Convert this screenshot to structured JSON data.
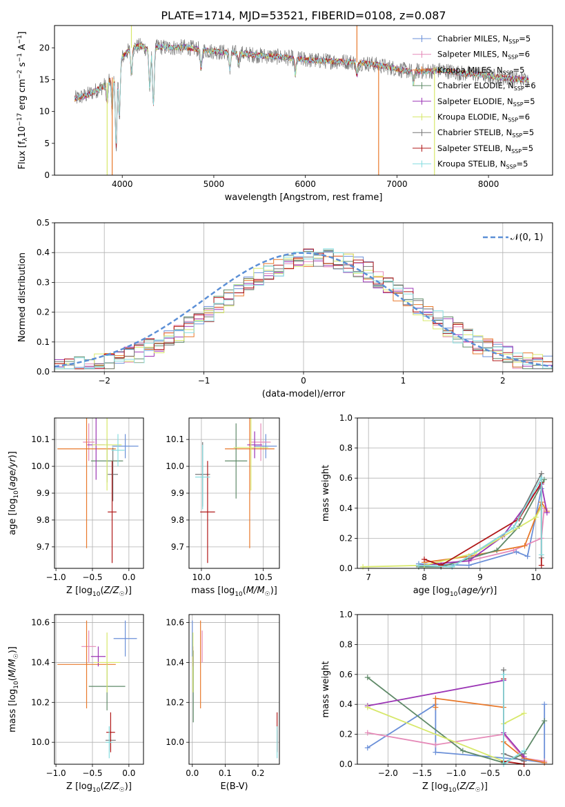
{
  "figure_title": "PLATE=1714, MJD=53521, FIBERID=0108, z=0.087",
  "colors": {
    "Chabrier MILES": "#6a8fd8",
    "Salpeter MILES": "#e58ab8",
    "Kroupa MILES": "#e8782a",
    "Chabrier ELODIE": "#5f8a68",
    "Salpeter ELODIE": "#9b35b5",
    "Kroupa ELODIE": "#d7e86a",
    "Chabrier STELIB": "#777777",
    "Salpeter STELIB": "#b01818",
    "Kroupa STELIB": "#86dde0",
    "normal": "#5b8fd6",
    "grid": "#b0b0b0"
  },
  "chart_data": [
    {
      "id": "spectrum",
      "type": "line",
      "xlabel": "wavelength [Angstrom, rest frame]",
      "ylabel": "Flux [f_λ10^-17 erg cm^-2 s^-1 A^-1]",
      "xlim": [
        3260,
        8700
      ],
      "ylim": [
        0,
        23.5
      ],
      "xticks": [
        4000,
        5000,
        6000,
        7000,
        8000
      ],
      "yticks": [
        0,
        5,
        10,
        15,
        20
      ],
      "grid": false,
      "legend_position": "top-right",
      "legend": [
        {
          "label": "Chabrier MILES, N_SSP=5",
          "main": "Chabrier MILES, N",
          "sub": "SSP",
          "tail": "=5"
        },
        {
          "label": "Salpeter MILES, N_SSP=6",
          "main": "Salpeter MILES, N",
          "sub": "SSP",
          "tail": "=6"
        },
        {
          "label": "Kroupa MILES, N_SSP=5",
          "main": "Kroupa MILES, N",
          "sub": "SSP",
          "tail": "=5"
        },
        {
          "label": "Chabrier ELODIE, N_SSP=6",
          "main": "Chabrier ELODIE, N",
          "sub": "SSP",
          "tail": "=6"
        },
        {
          "label": "Salpeter ELODIE, N_SSP=5",
          "main": "Salpeter ELODIE, N",
          "sub": "SSP",
          "tail": "=5"
        },
        {
          "label": "Kroupa ELODIE, N_SSP=6",
          "main": "Kroupa ELODIE, N",
          "sub": "SSP",
          "tail": "=6"
        },
        {
          "label": "Chabrier STELIB, N_SSP=5",
          "main": "Chabrier STELIB, N",
          "sub": "SSP",
          "tail": "=5"
        },
        {
          "label": "Salpeter STELIB, N_SSP=5",
          "main": "Salpeter STELIB, N",
          "sub": "SSP",
          "tail": "=5"
        },
        {
          "label": "Kroupa STELIB, N_SSP=5",
          "main": "Kroupa STELIB, N",
          "sub": "SSP",
          "tail": "=5"
        }
      ],
      "continuum": [
        [
          3480,
          12.0
        ],
        [
          3600,
          12.5
        ],
        [
          3700,
          13.2
        ],
        [
          3800,
          14.0
        ],
        [
          3900,
          15.5
        ],
        [
          3960,
          17.0
        ],
        [
          4000,
          18.5
        ],
        [
          4100,
          20.0
        ],
        [
          4200,
          20.3
        ],
        [
          4300,
          19.6
        ],
        [
          4400,
          20.2
        ],
        [
          4500,
          20.0
        ],
        [
          4700,
          20.1
        ],
        [
          4900,
          19.6
        ],
        [
          5100,
          19.3
        ],
        [
          5300,
          19.1
        ],
        [
          5500,
          18.8
        ],
        [
          5700,
          18.6
        ],
        [
          5900,
          18.3
        ],
        [
          6100,
          18.0
        ],
        [
          6300,
          17.9
        ],
        [
          6500,
          17.8
        ],
        [
          6700,
          17.5
        ],
        [
          6900,
          17.0
        ],
        [
          7100,
          16.4
        ],
        [
          7300,
          16.3
        ],
        [
          7500,
          16.5
        ],
        [
          7700,
          16.0
        ],
        [
          7900,
          15.8
        ],
        [
          8100,
          15.4
        ],
        [
          8300,
          15.1
        ],
        [
          8440,
          15.0
        ]
      ],
      "dips": [
        [
          3835,
          3.0
        ],
        [
          3890,
          5.0
        ],
        [
          3933,
          12.0
        ],
        [
          3968,
          8.0
        ],
        [
          4101,
          4.0
        ],
        [
          4300,
          6.0
        ],
        [
          4340,
          9.0
        ],
        [
          4861,
          3.0
        ],
        [
          5175,
          2.5
        ],
        [
          5270,
          1.5
        ],
        [
          5890,
          2.5
        ],
        [
          6563,
          2.0
        ],
        [
          7180,
          2.0
        ]
      ],
      "spikes": [
        [
          3835,
          0.0
        ],
        [
          3890,
          0.0
        ],
        [
          4100,
          24.0
        ],
        [
          6800,
          0.0
        ],
        [
          7410,
          0.0
        ],
        [
          6563,
          24.0
        ]
      ]
    },
    {
      "id": "residuals",
      "type": "histogram",
      "xlabel": "(data-model)/error",
      "ylabel": "Normed distribution",
      "xlim": [
        -2.5,
        2.5
      ],
      "ylim": [
        0,
        0.5
      ],
      "xticks": [
        -2,
        -1,
        0,
        1,
        2
      ],
      "yticks": [
        0.0,
        0.1,
        0.2,
        0.3,
        0.4,
        0.5
      ],
      "grid": true,
      "legend_position": "top-right",
      "normal_label": "𝒩(0, 1)",
      "bin_width": 0.1,
      "bin_start": -2.5
    },
    {
      "id": "age-vs-Z",
      "type": "errorbar",
      "xlabel": "Z [log10(Z/Z☉)]",
      "ylabel": "age  [log10(age/yr)]",
      "xlim": [
        -1.02,
        0.2
      ],
      "ylim": [
        9.62,
        10.18
      ],
      "xticks": [
        -1.0,
        -0.5,
        0.0
      ],
      "yticks": [
        9.7,
        9.8,
        9.9,
        10.0,
        10.1
      ],
      "grid": true,
      "points": [
        {
          "model": "Chabrier MILES",
          "x": -0.05,
          "y": 10.075,
          "xerr": 0.18,
          "yerr": 0.045
        },
        {
          "model": "Salpeter MILES",
          "x": -0.55,
          "y": 10.09,
          "xerr": 0.08,
          "yerr": 0.07
        },
        {
          "model": "Kroupa MILES",
          "x": -0.58,
          "y": 10.065,
          "xerr": 0.4,
          "yerr": 0.37
        },
        {
          "model": "Chabrier ELODIE",
          "x": -0.3,
          "y": 10.02,
          "xerr": 0.22,
          "yerr": 0.08
        },
        {
          "model": "Salpeter ELODIE",
          "x": -0.45,
          "y": 10.08,
          "xerr": 0.12,
          "yerr": 0.13
        },
        {
          "model": "Kroupa ELODIE",
          "x": -0.3,
          "y": 10.08,
          "xerr": 0.2,
          "yerr": 0.17
        },
        {
          "model": "Chabrier STELIB",
          "x": -0.22,
          "y": 9.97,
          "xerr": 0.07,
          "yerr": 0.1
        },
        {
          "model": "Salpeter STELIB",
          "x": -0.23,
          "y": 9.83,
          "xerr": 0.06,
          "yerr": 0.19
        },
        {
          "model": "Kroupa STELIB",
          "x": -0.15,
          "y": 10.06,
          "xerr": 0.09,
          "yerr": 0.06
        }
      ]
    },
    {
      "id": "age-vs-mass",
      "type": "errorbar",
      "xlabel": "mass [log10(M/M☉)]",
      "ylabel": "",
      "xlim": [
        9.9,
        10.63
      ],
      "ylim": [
        9.62,
        10.18
      ],
      "xticks": [
        10.0,
        10.5
      ],
      "yticks": [
        9.7,
        9.8,
        9.9,
        10.0,
        10.1
      ],
      "grid": true,
      "points": [
        {
          "model": "Chabrier MILES",
          "x": 10.52,
          "y": 10.075,
          "xerr": 0.09,
          "yerr": 0.045
        },
        {
          "model": "Salpeter MILES",
          "x": 10.48,
          "y": 10.09,
          "xerr": 0.08,
          "yerr": 0.07
        },
        {
          "model": "Kroupa MILES",
          "x": 10.39,
          "y": 10.065,
          "xerr": 0.2,
          "yerr": 0.37
        },
        {
          "model": "Chabrier ELODIE",
          "x": 10.28,
          "y": 10.02,
          "xerr": 0.09,
          "yerr": 0.14
        },
        {
          "model": "Salpeter ELODIE",
          "x": 10.43,
          "y": 10.08,
          "xerr": 0.06,
          "yerr": 0.05
        },
        {
          "model": "Kroupa ELODIE",
          "x": 10.4,
          "y": 10.07,
          "xerr": 0.14,
          "yerr": 0.16
        },
        {
          "model": "Chabrier STELIB",
          "x": 10.01,
          "y": 9.97,
          "xerr": 0.06,
          "yerr": 0.12
        },
        {
          "model": "Salpeter STELIB",
          "x": 10.05,
          "y": 9.83,
          "xerr": 0.06,
          "yerr": 0.19
        },
        {
          "model": "Kroupa STELIB",
          "x": 10.01,
          "y": 9.96,
          "xerr": 0.06,
          "yerr": 0.12
        }
      ]
    },
    {
      "id": "weight-vs-age",
      "type": "line",
      "xlabel": "age  [log10(age/yr)]",
      "ylabel": "mass weight",
      "xlim": [
        6.8,
        10.3
      ],
      "ylim": [
        0,
        1.0
      ],
      "xticks": [
        7,
        8,
        9,
        10
      ],
      "yticks": [
        0.0,
        0.2,
        0.4,
        0.6,
        0.8,
        1.0
      ],
      "grid": true,
      "series": [
        {
          "model": "Chabrier MILES",
          "x": [
            7.9,
            8.8,
            9.65,
            9.85,
            10.1
          ],
          "y": [
            0.03,
            0.02,
            0.11,
            0.08,
            0.53
          ]
        },
        {
          "model": "Salpeter MILES",
          "x": [
            7.9,
            8.8,
            9.6,
            10.1,
            10.15
          ],
          "y": [
            0.02,
            0.05,
            0.12,
            0.2,
            0.4
          ]
        },
        {
          "model": "Kroupa MILES",
          "x": [
            8.0,
            8.8,
            9.8,
            10.1,
            10.2
          ],
          "y": [
            0.04,
            0.08,
            0.15,
            0.44,
            0.38
          ]
        },
        {
          "model": "Chabrier ELODIE",
          "x": [
            7.9,
            8.3,
            9.3,
            9.7,
            10.15
          ],
          "y": [
            0.01,
            0.01,
            0.12,
            0.28,
            0.59
          ]
        },
        {
          "model": "Salpeter ELODIE",
          "x": [
            7.9,
            8.8,
            9.4,
            10.1,
            10.2
          ],
          "y": [
            0.02,
            0.05,
            0.21,
            0.56,
            0.37
          ]
        },
        {
          "model": "Kroupa ELODIE",
          "x": [
            6.9,
            8.0,
            8.9,
            10.0,
            10.1
          ],
          "y": [
            0.01,
            0.02,
            0.1,
            0.34,
            0.41
          ]
        },
        {
          "model": "Chabrier STELIB",
          "x": [
            7.9,
            8.5,
            9.6,
            10.1,
            10.1
          ],
          "y": [
            0.02,
            0.01,
            0.27,
            0.63,
            0.07
          ]
        },
        {
          "model": "Salpeter STELIB",
          "x": [
            8.0,
            8.3,
            9.7,
            10.1,
            10.1
          ],
          "y": [
            0.06,
            0.02,
            0.33,
            0.57,
            0.02
          ]
        },
        {
          "model": "Kroupa STELIB",
          "x": [
            7.9,
            8.5,
            9.6,
            10.1,
            10.1
          ],
          "y": [
            0.02,
            0.01,
            0.27,
            0.6,
            0.09
          ]
        }
      ]
    },
    {
      "id": "mass-vs-Z",
      "type": "errorbar",
      "xlabel": "Z [log10(Z/Z☉)]",
      "ylabel": "mass [log10(M/M☉)]",
      "xlim": [
        -1.02,
        0.2
      ],
      "ylim": [
        9.89,
        10.64
      ],
      "xticks": [
        -1.0,
        -0.5,
        0.0
      ],
      "yticks": [
        10.0,
        10.2,
        10.4,
        10.6
      ],
      "grid": true,
      "points": [
        {
          "model": "Chabrier MILES",
          "x": -0.05,
          "y": 10.52,
          "xerr": 0.16,
          "yerr": 0.09
        },
        {
          "model": "Salpeter MILES",
          "x": -0.55,
          "y": 10.48,
          "xerr": 0.1,
          "yerr": 0.08
        },
        {
          "model": "Kroupa MILES",
          "x": -0.58,
          "y": 10.39,
          "xerr": 0.4,
          "yerr": 0.22
        },
        {
          "model": "Chabrier ELODIE",
          "x": -0.3,
          "y": 10.28,
          "xerr": 0.25,
          "yerr": 0.12
        },
        {
          "model": "Salpeter ELODIE",
          "x": -0.42,
          "y": 10.43,
          "xerr": 0.1,
          "yerr": 0.05
        },
        {
          "model": "Kroupa ELODIE",
          "x": -0.3,
          "y": 10.4,
          "xerr": 0.18,
          "yerr": 0.15
        },
        {
          "model": "Chabrier STELIB",
          "x": -0.25,
          "y": 10.01,
          "xerr": 0.07,
          "yerr": 0.05
        },
        {
          "model": "Salpeter STELIB",
          "x": -0.25,
          "y": 10.05,
          "xerr": 0.06,
          "yerr": 0.1
        },
        {
          "model": "Kroupa STELIB",
          "x": -0.27,
          "y": 10.0,
          "xerr": 0.05,
          "yerr": 0.08
        }
      ]
    },
    {
      "id": "mass-vs-EBV",
      "type": "errorbar",
      "xlabel": "E(B-V)",
      "ylabel": "",
      "xlim": [
        -0.01,
        0.265
      ],
      "ylim": [
        9.89,
        10.64
      ],
      "xticks": [
        0.0,
        0.1,
        0.2
      ],
      "yticks": [
        10.0,
        10.2,
        10.4,
        10.6
      ],
      "grid": true,
      "points": [
        {
          "model": "Chabrier MILES",
          "x": 0.0,
          "y": 10.52,
          "xerr": 0.0,
          "yerr": 0.09
        },
        {
          "model": "Salpeter MILES",
          "x": 0.03,
          "y": 10.48,
          "xerr": 0.0,
          "yerr": 0.08
        },
        {
          "model": "Kroupa MILES",
          "x": 0.025,
          "y": 10.39,
          "xerr": 0.0,
          "yerr": 0.22
        },
        {
          "model": "Chabrier ELODIE",
          "x": 0.003,
          "y": 10.28,
          "xerr": 0.0,
          "yerr": 0.18
        },
        {
          "model": "Salpeter ELODIE",
          "x": 0.002,
          "y": 10.43,
          "xerr": 0.0,
          "yerr": 0.05
        },
        {
          "model": "Kroupa ELODIE",
          "x": 0.002,
          "y": 10.4,
          "xerr": 0.0,
          "yerr": 0.15
        },
        {
          "model": "Chabrier STELIB",
          "x": 0.258,
          "y": 10.01,
          "xerr": 0.0,
          "yerr": 0.05
        },
        {
          "model": "Salpeter STELIB",
          "x": 0.258,
          "y": 10.05,
          "xerr": 0.0,
          "yerr": 0.1
        },
        {
          "model": "Kroupa STELIB",
          "x": 0.258,
          "y": 10.0,
          "xerr": 0.0,
          "yerr": 0.08
        }
      ]
    },
    {
      "id": "weight-vs-Z",
      "type": "line",
      "xlabel": "Z [log10(Z/Z☉)]",
      "ylabel": "mass weight",
      "xlim": [
        -2.45,
        0.42
      ],
      "ylim": [
        0,
        1.0
      ],
      "xticks": [
        -2.0,
        -1.5,
        -1.0,
        -0.5,
        0.0
      ],
      "yticks": [
        0.0,
        0.2,
        0.4,
        0.6,
        0.8,
        1.0
      ],
      "grid": true,
      "series": [
        {
          "model": "Chabrier MILES",
          "x": [
            -2.3,
            -1.3,
            -1.3,
            0.0,
            0.3,
            0.3
          ],
          "y": [
            0.11,
            0.4,
            0.08,
            0.03,
            0.01,
            0.4
          ]
        },
        {
          "model": "Salpeter MILES",
          "x": [
            -2.3,
            -1.3,
            -0.3,
            0.0,
            0.3
          ],
          "y": [
            0.21,
            0.13,
            0.2,
            0.04,
            0.02
          ]
        },
        {
          "model": "Kroupa MILES",
          "x": [
            -1.3,
            -1.3,
            -0.3,
            -0.3,
            0.0,
            0.3
          ],
          "y": [
            0.38,
            0.44,
            0.38,
            0.15,
            0.04,
            0.01
          ]
        },
        {
          "model": "Chabrier ELODIE",
          "x": [
            -2.3,
            -0.9,
            -0.3,
            0.0,
            0.3
          ],
          "y": [
            0.58,
            0.09,
            0.01,
            0.07,
            0.29
          ]
        },
        {
          "model": "Salpeter ELODIE",
          "x": [
            -2.3,
            -0.3,
            -0.3,
            0.0
          ],
          "y": [
            0.39,
            0.56,
            0.21,
            0.05
          ]
        },
        {
          "model": "Kroupa ELODIE",
          "x": [
            -2.3,
            -0.3,
            -0.3,
            0.0
          ],
          "y": [
            0.38,
            0.02,
            0.27,
            0.34
          ]
        },
        {
          "model": "Chabrier STELIB",
          "x": [
            -0.3,
            -0.3,
            0.0
          ],
          "y": [
            0.63,
            0.07,
            0.02
          ]
        },
        {
          "model": "Salpeter STELIB",
          "x": [
            -0.3,
            -0.3,
            0.0
          ],
          "y": [
            0.57,
            0.02,
            0.0
          ]
        },
        {
          "model": "Kroupa STELIB",
          "x": [
            -0.3,
            -0.3,
            0.0
          ],
          "y": [
            0.6,
            0.0,
            0.09
          ]
        }
      ]
    }
  ]
}
